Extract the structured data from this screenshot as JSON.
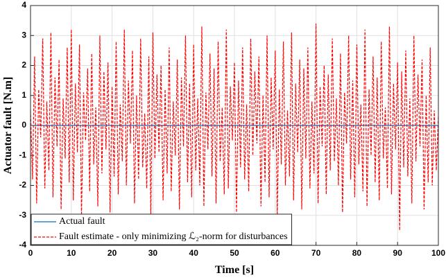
{
  "chart_data": {
    "type": "line",
    "xlabel": "Time [s]",
    "ylabel": "Actuator fault [N.m]",
    "xlim": [
      0,
      100
    ],
    "ylim": [
      -4,
      4
    ],
    "xticks": [
      0,
      10,
      20,
      30,
      40,
      50,
      60,
      70,
      80,
      90,
      100
    ],
    "yticks": [
      -4,
      -3,
      -2,
      -1,
      0,
      1,
      2,
      3,
      4
    ],
    "grid": true,
    "legend": "lower left",
    "series": [
      {
        "name": "Actual fault",
        "color": "#0072bd",
        "dash": "solid",
        "x": [
          0,
          100
        ],
        "values": [
          0,
          0
        ]
      },
      {
        "name": "Fault estimate - only minimizing ℒ₂-norm for disturbances",
        "color": "#ff0000",
        "dash": "dashed",
        "x": [
          0,
          0.5,
          1,
          1.5,
          2,
          2.5,
          3,
          3.5,
          4,
          4.5,
          5,
          5.5,
          6,
          6.5,
          7,
          7.5,
          8,
          8.5,
          9,
          9.5,
          10,
          10.5,
          11,
          11.5,
          12,
          12.5,
          13,
          13.5,
          14,
          14.5,
          15,
          15.5,
          16,
          16.5,
          17,
          17.5,
          18,
          18.5,
          19,
          19.5,
          20,
          20.5,
          21,
          21.5,
          22,
          22.5,
          23,
          23.5,
          24,
          24.5,
          25,
          25.5,
          26,
          26.5,
          27,
          27.5,
          28,
          28.5,
          29,
          29.5,
          30,
          30.5,
          31,
          31.5,
          32,
          32.5,
          33,
          33.5,
          34,
          34.5,
          35,
          35.5,
          36,
          36.5,
          37,
          37.5,
          38,
          38.5,
          39,
          39.5,
          40,
          40.5,
          41,
          41.5,
          42,
          42.5,
          43,
          43.5,
          44,
          44.5,
          45,
          45.5,
          46,
          46.5,
          47,
          47.5,
          48,
          48.5,
          49,
          49.5,
          50,
          50.5,
          51,
          51.5,
          52,
          52.5,
          53,
          53.5,
          54,
          54.5,
          55,
          55.5,
          56,
          56.5,
          57,
          57.5,
          58,
          58.5,
          59,
          59.5,
          60,
          60.5,
          61,
          61.5,
          62,
          62.5,
          63,
          63.5,
          64,
          64.5,
          65,
          65.5,
          66,
          66.5,
          67,
          67.5,
          68,
          68.5,
          69,
          69.5,
          70,
          70.5,
          71,
          71.5,
          72,
          72.5,
          73,
          73.5,
          74,
          74.5,
          75,
          75.5,
          76,
          76.5,
          77,
          77.5,
          78,
          78.5,
          79,
          79.5,
          80,
          80.5,
          81,
          81.5,
          82,
          82.5,
          83,
          83.5,
          84,
          84.5,
          85,
          85.5,
          86,
          86.5,
          87,
          87.5,
          88,
          88.5,
          89,
          89.5,
          90,
          90.5,
          91,
          91.5,
          92,
          92.5,
          93,
          93.5,
          94,
          94.5,
          95,
          95.5,
          96,
          96.5,
          97,
          97.5,
          98,
          98.5,
          99,
          99.5,
          100
        ],
        "values": [
          0.5,
          -1.8,
          2.3,
          -2.6,
          1.2,
          -0.4,
          2.9,
          -2.1,
          0.8,
          -1.5,
          3.1,
          -2.4,
          1.6,
          -0.7,
          2.2,
          -2.8,
          0.9,
          -1.1,
          2.6,
          -1.9,
          3.2,
          -2.5,
          1.4,
          -0.9,
          2.7,
          -3.0,
          1.1,
          -0.5,
          1.9,
          -2.2,
          2.4,
          -1.3,
          0.6,
          -2.7,
          3.0,
          -1.6,
          1.8,
          -0.8,
          2.1,
          -2.9,
          1.3,
          -1.7,
          2.8,
          -2.3,
          0.7,
          -1.2,
          3.2,
          -2.0,
          1.5,
          -0.6,
          2.5,
          -2.6,
          1.0,
          -1.8,
          2.9,
          -1.4,
          0.4,
          -2.1,
          2.3,
          -3.0,
          3.1,
          -1.1,
          1.7,
          -0.9,
          2.0,
          -2.5,
          1.2,
          -1.6,
          2.6,
          -2.2,
          0.8,
          -1.0,
          2.2,
          -2.8,
          1.6,
          -0.7,
          3.0,
          -1.9,
          1.4,
          -2.4,
          2.7,
          -1.5,
          0.9,
          -2.0,
          3.3,
          -2.7,
          1.1,
          -0.8,
          2.4,
          -1.7,
          1.9,
          -2.6,
          2.8,
          -1.2,
          0.6,
          -2.3,
          3.2,
          -2.1,
          1.3,
          -0.5,
          2.1,
          -2.9,
          1.5,
          -1.4,
          2.6,
          -1.8,
          0.7,
          -2.2,
          2.9,
          -1.0,
          1.8,
          -0.6,
          2.3,
          -2.7,
          1.0,
          -1.9,
          3.0,
          -2.4,
          1.6,
          -0.8,
          2.5,
          -3.0,
          1.2,
          -1.3,
          2.8,
          -2.0,
          0.5,
          -1.7,
          3.1,
          -2.5,
          1.4,
          -0.9,
          2.2,
          -2.8,
          1.9,
          -1.1,
          2.6,
          -2.1,
          0.8,
          -1.6,
          3.4,
          -2.6,
          1.3,
          -0.7,
          2.0,
          -2.3,
          1.7,
          -1.5,
          2.9,
          -1.2,
          0.9,
          -2.0,
          2.4,
          -2.9,
          1.1,
          -0.6,
          3.0,
          -1.8,
          1.5,
          -2.4,
          2.7,
          -1.3,
          0.7,
          -2.2,
          3.2,
          -2.7,
          1.2,
          -1.0,
          2.3,
          -1.9,
          1.6,
          -2.5,
          2.8,
          -1.1,
          0.6,
          -2.1,
          3.3,
          -2.3,
          1.4,
          -0.8,
          2.1,
          -3.5,
          1.8,
          -1.4,
          2.5,
          -1.7,
          0.9,
          -2.6,
          3.0,
          -1.2,
          1.7,
          -0.7,
          2.2,
          -2.8,
          1.0,
          -1.9,
          2.6,
          -2.0,
          0.5,
          -1.5,
          0.3
        ]
      }
    ]
  }
}
